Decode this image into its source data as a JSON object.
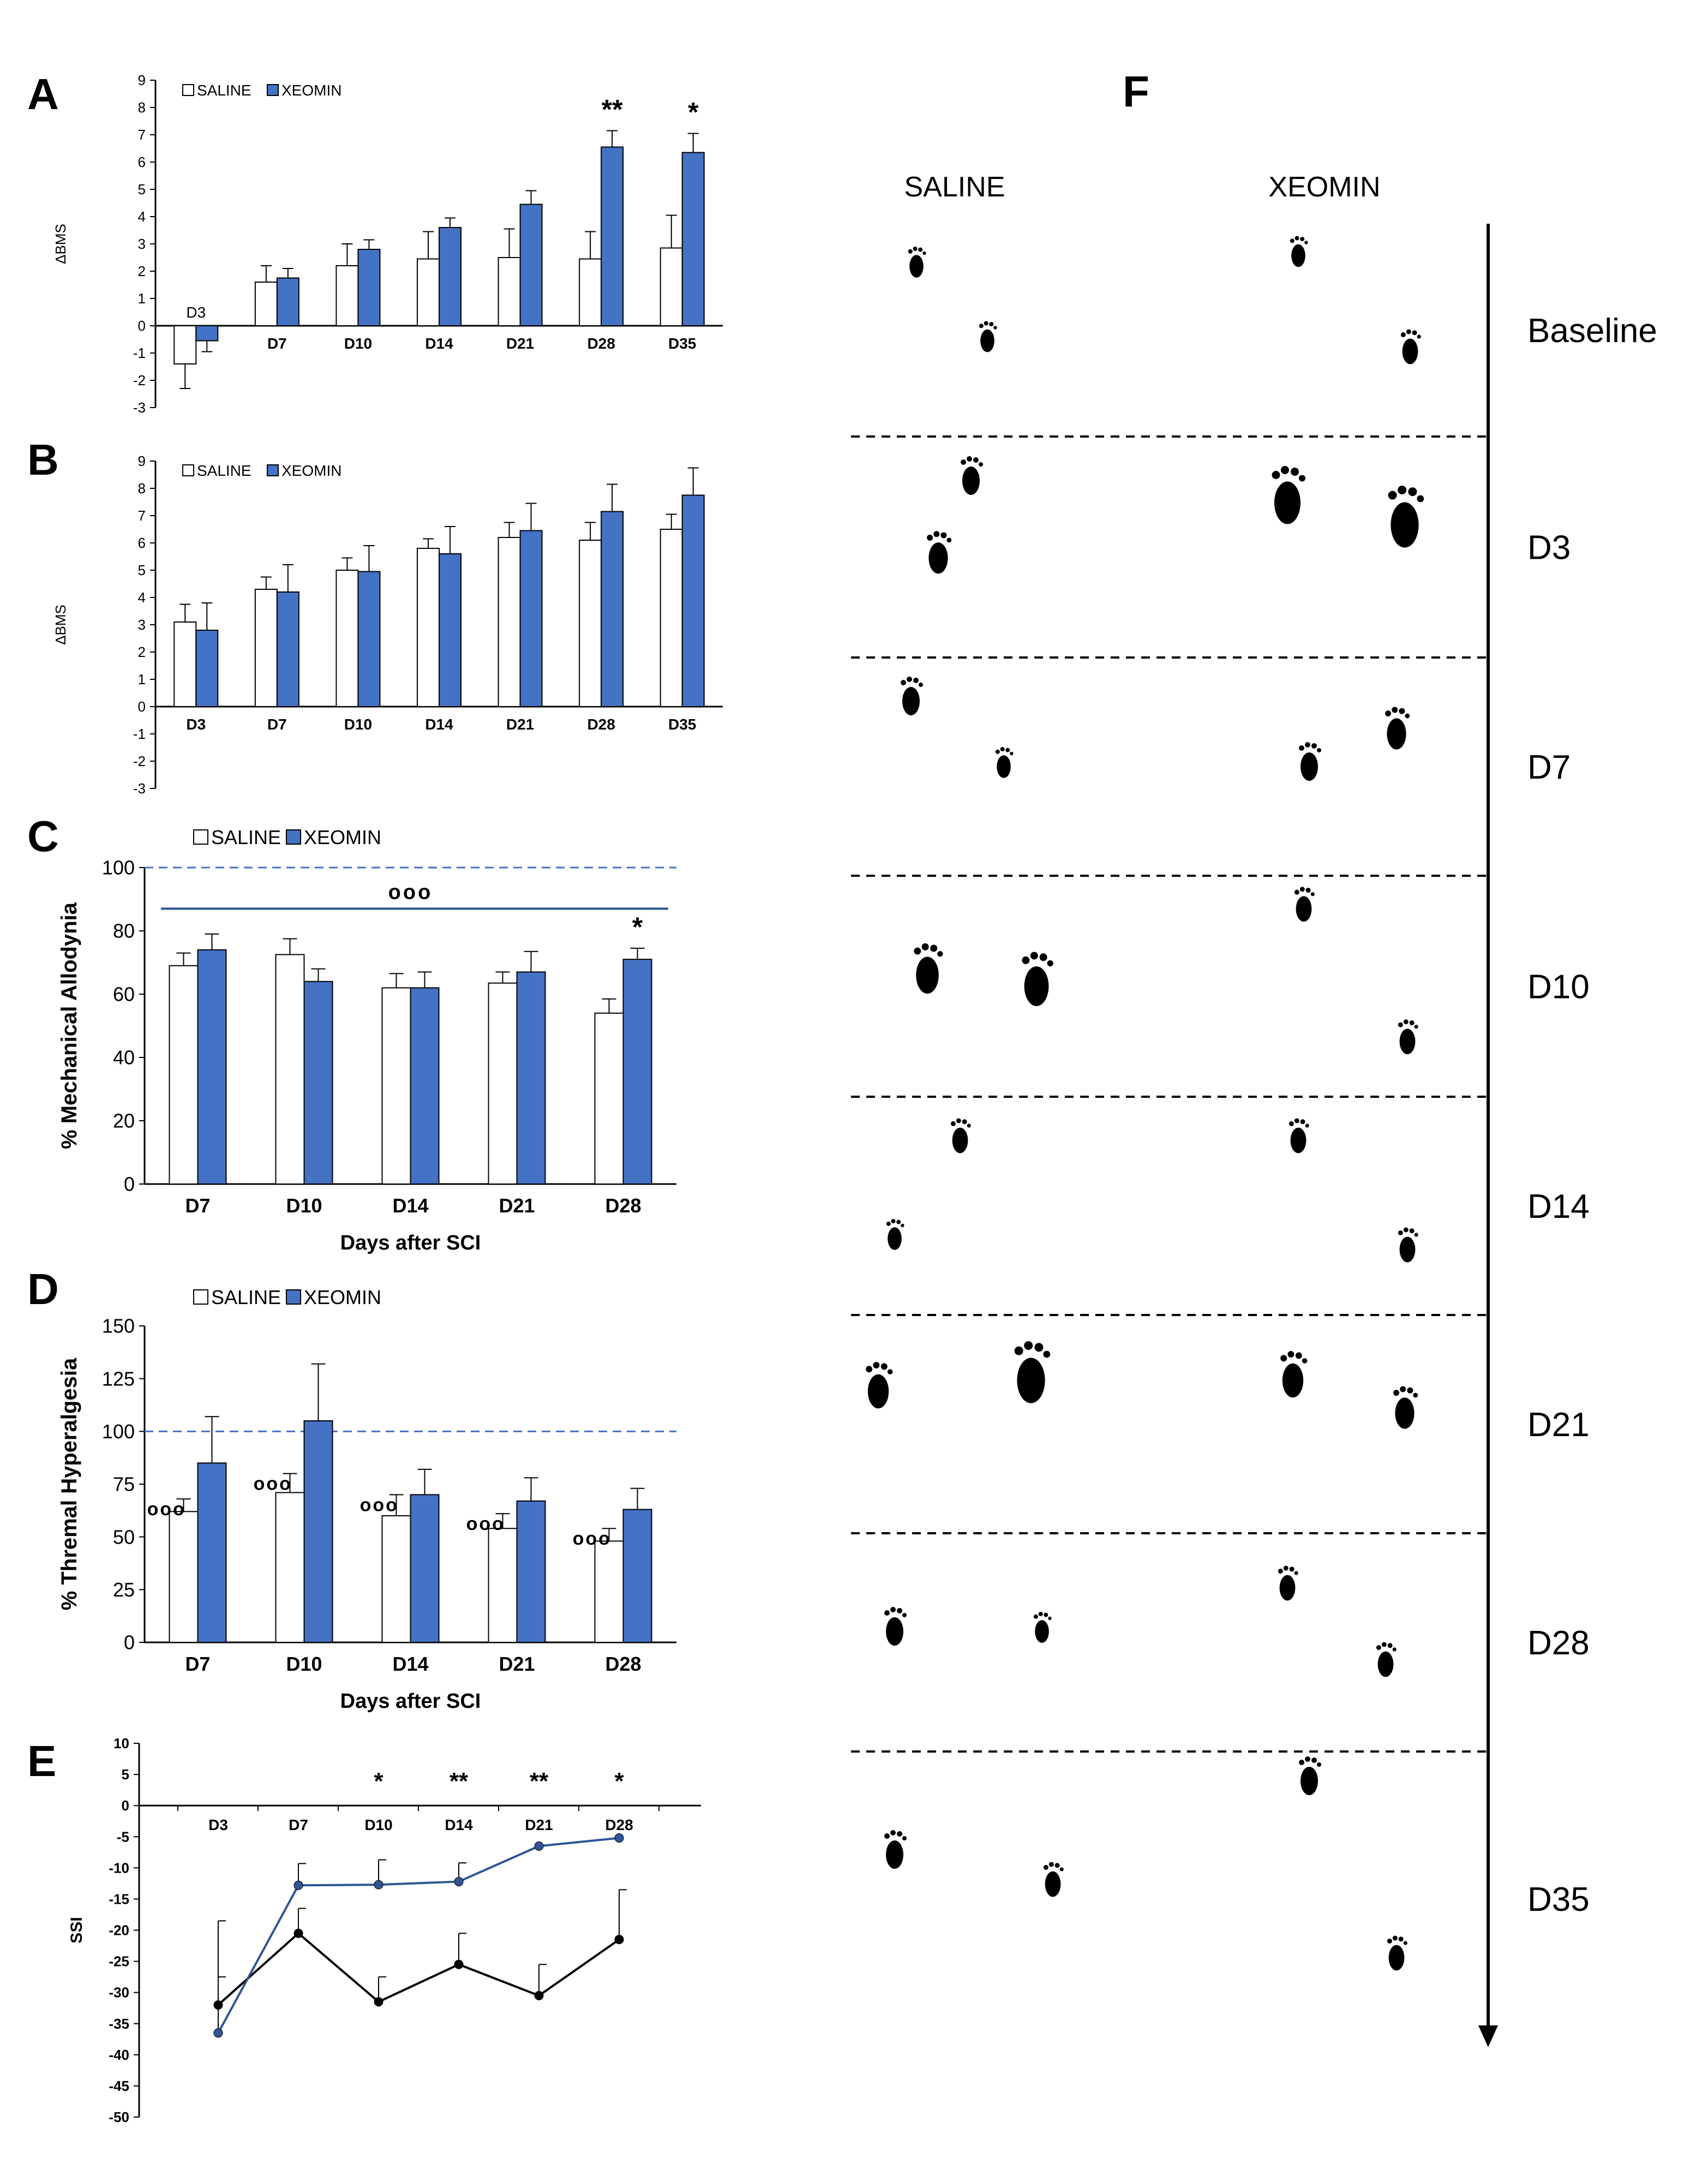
{
  "colors": {
    "saline_fill": "#ffffff",
    "xeomin_fill": "#4472c4",
    "axis": "#000000",
    "dashed_ref": "#4472c4",
    "saline_line": "#000000",
    "xeomin_line": "#2f5597"
  },
  "panel_letters": {
    "A": "A",
    "B": "B",
    "C": "C",
    "D": "D",
    "E": "E",
    "F": "F"
  },
  "chart_data": [
    {
      "panel": "A",
      "type": "bar",
      "ylabel": "ΔBMS",
      "ylim": [
        -3,
        9
      ],
      "yticks": [
        -3,
        -2,
        -1,
        0,
        1,
        2,
        3,
        4,
        5,
        6,
        7,
        8,
        9
      ],
      "categories": [
        "D3",
        "D7",
        "D10",
        "D14",
        "D21",
        "D28",
        "D35"
      ],
      "legend": [
        "SALINE",
        "XEOMIN"
      ],
      "series": [
        {
          "name": "SALINE",
          "values": [
            -1.4,
            1.6,
            2.2,
            2.45,
            2.5,
            2.45,
            2.85
          ],
          "errors": [
            0.9,
            0.6,
            0.8,
            1.0,
            1.05,
            1.0,
            1.2
          ]
        },
        {
          "name": "XEOMIN",
          "values": [
            -0.55,
            1.75,
            2.8,
            3.6,
            4.45,
            6.55,
            6.35
          ],
          "errors": [
            0.4,
            0.35,
            0.35,
            0.35,
            0.5,
            0.6,
            0.7
          ]
        }
      ],
      "annotations": [
        {
          "category": "D28",
          "text": "**"
        },
        {
          "category": "D35",
          "text": "*"
        }
      ]
    },
    {
      "panel": "B",
      "type": "bar",
      "ylabel": "ΔBMS",
      "ylim": [
        -3,
        9
      ],
      "yticks": [
        -3,
        -2,
        -1,
        0,
        1,
        2,
        3,
        4,
        5,
        6,
        7,
        8,
        9
      ],
      "categories": [
        "D3",
        "D7",
        "D10",
        "D14",
        "D21",
        "D28",
        "D35"
      ],
      "legend": [
        "SALINE",
        "XEOMIN"
      ],
      "series": [
        {
          "name": "SALINE",
          "values": [
            3.1,
            4.3,
            5.0,
            5.8,
            6.2,
            6.1,
            6.5
          ],
          "errors": [
            0.65,
            0.45,
            0.45,
            0.35,
            0.55,
            0.65,
            0.55
          ]
        },
        {
          "name": "XEOMIN",
          "values": [
            2.8,
            4.2,
            4.95,
            5.6,
            6.45,
            7.15,
            7.75
          ],
          "errors": [
            1.0,
            1.0,
            0.95,
            1.0,
            1.0,
            1.0,
            1.0
          ]
        }
      ],
      "annotations": []
    },
    {
      "panel": "C",
      "type": "bar",
      "ylabel": "% Mechanical Allodynia",
      "xlabel": "Days after SCI",
      "ylim": [
        0,
        100
      ],
      "yticks": [
        0,
        20,
        40,
        60,
        80,
        100
      ],
      "categories": [
        "D7",
        "D10",
        "D14",
        "D21",
        "D28"
      ],
      "legend": [
        "SALINE",
        "XEOMIN"
      ],
      "reference_line": 100,
      "bracket": {
        "y": 87,
        "label": "ooo"
      },
      "series": [
        {
          "name": "SALINE",
          "values": [
            69,
            72.5,
            62,
            63.5,
            54
          ],
          "errors": [
            4,
            5,
            4.5,
            3.5,
            4.5
          ]
        },
        {
          "name": "XEOMIN",
          "values": [
            74,
            64,
            62,
            67,
            71
          ],
          "errors": [
            5,
            4,
            5,
            6.5,
            3.5
          ]
        }
      ],
      "annotations": [
        {
          "category": "D28",
          "text": "*"
        }
      ]
    },
    {
      "panel": "D",
      "type": "bar",
      "ylabel": "% Thremal Hyperalgesia",
      "xlabel": "Days after SCI",
      "ylim": [
        0,
        150
      ],
      "yticks": [
        0,
        25,
        50,
        75,
        100,
        125,
        150
      ],
      "categories": [
        "D7",
        "D10",
        "D14",
        "D21",
        "D28"
      ],
      "legend": [
        "SALINE",
        "XEOMIN"
      ],
      "reference_line": 100,
      "series": [
        {
          "name": "SALINE",
          "values": [
            62,
            71,
            60,
            54,
            48
          ],
          "errors": [
            6,
            9,
            10,
            7,
            6
          ]
        },
        {
          "name": "XEOMIN",
          "values": [
            85,
            105,
            70,
            67,
            63
          ],
          "errors": [
            22,
            27,
            12,
            11,
            10
          ]
        }
      ],
      "annotations": [
        {
          "category": "D7",
          "text": "ooo"
        },
        {
          "category": "D10",
          "text": "ooo"
        },
        {
          "category": "D14",
          "text": "ooo"
        },
        {
          "category": "D21",
          "text": "ooo"
        },
        {
          "category": "D28",
          "text": "ooo"
        }
      ]
    },
    {
      "panel": "E",
      "type": "line",
      "ylabel": "SSI",
      "ylim": [
        -50,
        10
      ],
      "yticks": [
        10,
        5,
        0,
        -5,
        -10,
        -15,
        -20,
        -25,
        -30,
        -35,
        -40,
        -45,
        -50
      ],
      "categories": [
        "D3",
        "D7",
        "D10",
        "D14",
        "D21",
        "D28"
      ],
      "series": [
        {
          "name": "SALINE",
          "values": [
            -32,
            -20.5,
            -31.5,
            -25.5,
            -30.5,
            -21.5
          ],
          "errors": [
            13.5,
            4,
            4,
            5,
            5,
            8
          ]
        },
        {
          "name": "XEOMIN",
          "values": [
            -36.5,
            -12.8,
            -12.7,
            -12.2,
            -6.5,
            -5.2
          ],
          "errors": [
            9,
            3.5,
            4,
            3,
            0,
            0
          ]
        }
      ],
      "annotations": [
        {
          "category": "D10",
          "text": "*"
        },
        {
          "category": "D14",
          "text": "**"
        },
        {
          "category": "D21",
          "text": "**"
        },
        {
          "category": "D28",
          "text": "*"
        }
      ]
    }
  ],
  "panelF": {
    "col_headers": [
      "SALINE",
      "XEOMIN"
    ],
    "rows": [
      "Baseline",
      "D3",
      "D7",
      "D10",
      "D14",
      "D21",
      "D28",
      "D35"
    ]
  }
}
